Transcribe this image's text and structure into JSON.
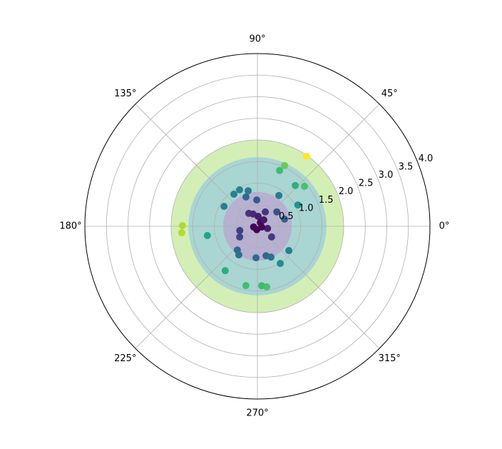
{
  "chart_data": {
    "type": "polar_scatter",
    "colormap": "viridis",
    "bands": [
      {
        "r": [
          1.6,
          2.0
        ],
        "color": "#d3efb5"
      },
      {
        "r": [
          0.8,
          1.6
        ],
        "color": "#a9d5d3"
      },
      {
        "r": [
          0,
          0.8
        ],
        "color": "#b7b0d1"
      }
    ],
    "theta": [
      54.8,
      65.9,
      68.3,
      47.1,
      40.3,
      27.8,
      55.1,
      36.5,
      14.7,
      61.2,
      91.5,
      111.3,
      116.1,
      104.6,
      126.3,
      149.2,
      123.7,
      109.4,
      179.5,
      184.9,
      190.5,
      193.5,
      211,
      229.7,
      236.9,
      234,
      259,
      274.1,
      278.7,
      267.4,
      286.3,
      293.8,
      301.6,
      322.3,
      323.1,
      347.9,
      350,
      259,
      51,
      190,
      45,
      86
    ],
    "r": [
      1.98,
      1.54,
      1.39,
      1.29,
      1.43,
      1.06,
      0.87,
      0.56,
      0.65,
      0.38,
      0.61,
      0.73,
      0.94,
      0.85,
      0.92,
      0.9,
      0.36,
      0.3,
      1.74,
      1.76,
      1.18,
      0.42,
      0.48,
      0.72,
      0.79,
      1.27,
      1.4,
      1.38,
      1.42,
      0.73,
      0.71,
      0.78,
      1.01,
      0.92,
      0.41,
      0.24,
      0.1,
      0.08,
      0.11,
      0.09,
      0.21,
      0.23
    ],
    "rlim": [
      0,
      4
    ],
    "rticks": [
      0.5,
      {
        "value": 1,
        "label": "1.0"
      },
      1.5,
      {
        "value": 2,
        "label": "2.0"
      },
      2.5,
      {
        "value": 3,
        "label": "3.0"
      },
      3.5,
      {
        "value": 4,
        "label": "4.0"
      }
    ],
    "rlabel_angle": 22.5,
    "thetaticks": [
      {
        "value": 0,
        "label": "0°"
      },
      {
        "value": 45,
        "label": "45°"
      },
      {
        "value": 90,
        "label": "90°"
      },
      {
        "value": 135,
        "label": "135°"
      },
      {
        "value": 180,
        "label": "180°"
      },
      {
        "value": 225,
        "label": "225°"
      },
      {
        "value": 270,
        "label": "270°"
      },
      {
        "value": 315,
        "label": "315°"
      }
    ],
    "grid": true
  }
}
